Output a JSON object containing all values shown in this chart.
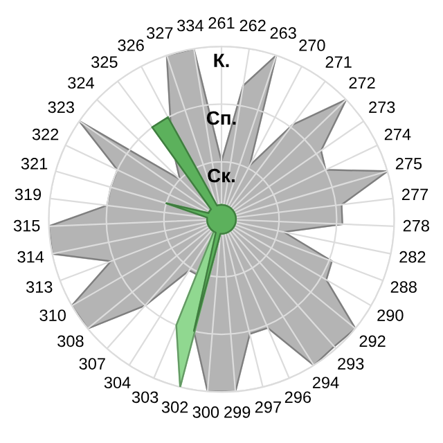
{
  "chart_data": {
    "type": "radar",
    "categories": [
      "261",
      "262",
      "263",
      "270",
      "271",
      "272",
      "273",
      "274",
      "275",
      "277",
      "278",
      "282",
      "288",
      "290",
      "292",
      "293",
      "294",
      "296",
      "297",
      "299",
      "300",
      "302",
      "303",
      "304",
      "307",
      "308",
      "310",
      "313",
      "314",
      "315",
      "319",
      "321",
      "322",
      "323",
      "324",
      "325",
      "326",
      "327",
      "334"
    ],
    "ylim": [
      0,
      3
    ],
    "yticks": [
      {
        "value": 1,
        "label": "Ск."
      },
      {
        "value": 2,
        "label": "Сп."
      },
      {
        "value": 3,
        "label": "К."
      }
    ],
    "grid": true,
    "marker": "none",
    "series": [
      {
        "color": "#b4b4b4",
        "values": [
          1.0,
          2.35,
          3.0,
          1.05,
          2.05,
          3.0,
          2.1,
          2.0,
          3.0,
          2.1,
          2.1,
          1.1,
          2.05,
          2.1,
          3.0,
          2.95,
          3.0,
          2.05,
          2.05,
          3.0,
          3.0,
          2.0,
          1.05,
          1.05,
          2.0,
          3.0,
          3.0,
          2.05,
          3.0,
          3.0,
          2.0,
          2.0,
          2.0,
          3.0,
          1.0,
          1.35,
          1.9,
          3.0,
          3.0
        ]
      },
      {
        "color": "#90d890",
        "values": [
          0.25,
          0.25,
          0.25,
          0.25,
          0.25,
          0.25,
          0.25,
          0.25,
          0.25,
          0.25,
          0.25,
          0.25,
          0.25,
          0.25,
          0.25,
          0.25,
          0.25,
          0.25,
          0.25,
          0.25,
          0.25,
          3.0,
          2.0,
          0.25,
          0.25,
          0.25,
          0.25,
          0.25,
          0.25,
          0.25,
          0.25,
          0.25,
          0.25,
          0.25,
          0.25,
          0.25,
          0.25,
          0.25,
          0.25
        ]
      },
      {
        "color": "#5cb15c",
        "values": [
          0.25,
          0.25,
          0.25,
          0.25,
          0.25,
          0.25,
          0.25,
          0.25,
          0.25,
          0.25,
          0.25,
          0.25,
          0.25,
          0.25,
          0.25,
          0.25,
          0.25,
          0.25,
          0.25,
          0.25,
          0.25,
          2.0,
          0.25,
          0.25,
          0.25,
          0.25,
          0.25,
          0.25,
          0.25,
          0.25,
          0.25,
          1.0,
          0.25,
          0.25,
          0.25,
          2.0,
          2.0,
          0.25,
          0.25
        ]
      }
    ]
  }
}
